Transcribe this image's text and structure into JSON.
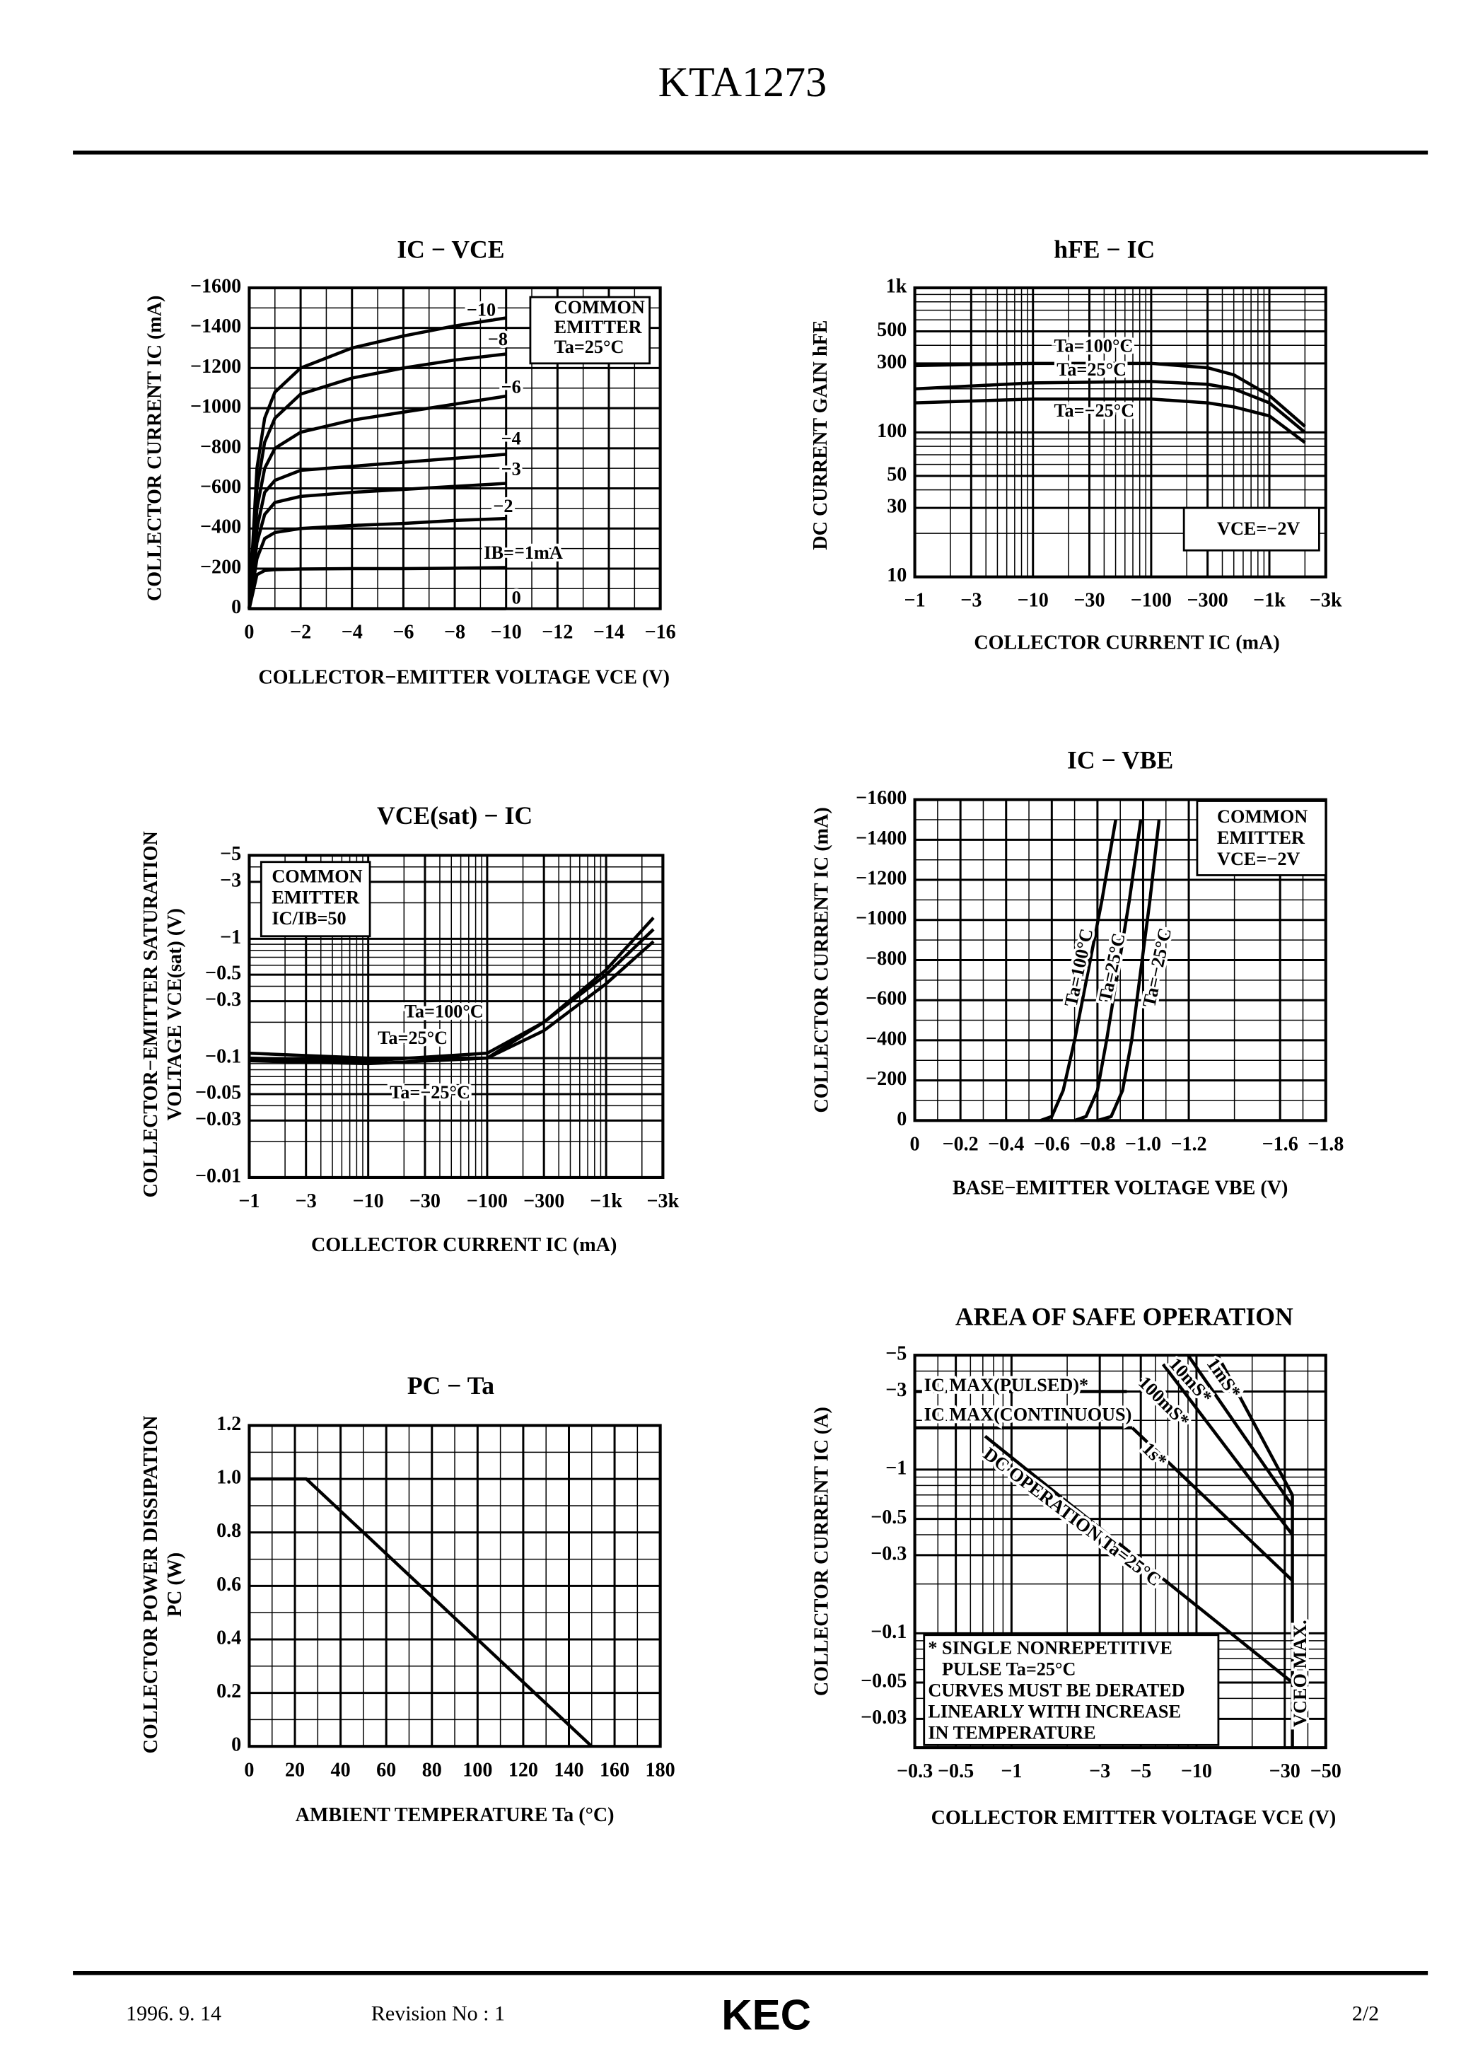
{
  "header": {
    "title": "KTA1273"
  },
  "chart_data": [
    {
      "type": "line",
      "title": "IC − VCE",
      "x_label": "COLLECTOR−EMITTER VOLTAGE VCE   (V)",
      "y_label": [
        "COLLECTOR CURRENT IC   (mA)"
      ],
      "annotation": [
        "COMMON",
        "EMITTER",
        "Ta=25°C"
      ],
      "color": "#000000",
      "grid": true,
      "x": [
        0,
        -0.3,
        -0.6,
        -1,
        -2,
        -4,
        -6,
        -8,
        -10
      ],
      "series": [
        {
          "name": "−10",
          "values": [
            0,
            -700,
            -950,
            -1080,
            -1200,
            -1300,
            -1360,
            -1410,
            -1450
          ]
        },
        {
          "name": "−8",
          "values": [
            0,
            -600,
            -830,
            -950,
            -1070,
            -1150,
            -1200,
            -1240,
            -1270
          ]
        },
        {
          "name": "−6",
          "values": [
            0,
            -500,
            -700,
            -800,
            -880,
            -940,
            -980,
            -1020,
            -1060
          ]
        },
        {
          "name": "−4",
          "values": [
            0,
            -400,
            -580,
            -640,
            -690,
            -710,
            -730,
            -750,
            -770
          ]
        },
        {
          "name": "−3",
          "values": [
            0,
            -330,
            -470,
            -530,
            -560,
            -580,
            -595,
            -610,
            -625
          ]
        },
        {
          "name": "−2",
          "values": [
            0,
            -250,
            -350,
            -380,
            -400,
            -415,
            -425,
            -440,
            -450
          ]
        },
        {
          "name": "IB=−1mA",
          "values": [
            0,
            -170,
            -190,
            -195,
            -198,
            -200,
            -200,
            -202,
            -205
          ]
        },
        {
          "name": "0",
          "values": [
            0,
            0,
            0,
            0,
            0,
            0,
            0,
            0,
            0
          ]
        }
      ],
      "xlim": [
        0,
        -16
      ],
      "ylim": [
        0,
        -1600
      ],
      "xticks": [
        0,
        {
          "value": -2,
          "label": "−2"
        },
        {
          "value": -4,
          "label": "−4"
        },
        {
          "value": -6,
          "label": "−6"
        },
        {
          "value": -8,
          "label": "−8"
        },
        {
          "value": -10,
          "label": "−10"
        },
        {
          "value": -12,
          "label": "−12"
        },
        {
          "value": -14,
          "label": "−14"
        },
        {
          "value": -16,
          "label": "−16"
        }
      ],
      "yticks": [
        0,
        {
          "value": -200,
          "label": "−200"
        },
        {
          "value": -400,
          "label": "−400"
        },
        {
          "value": -600,
          "label": "−600"
        },
        {
          "value": -800,
          "label": "−800"
        },
        {
          "value": -1000,
          "label": "−1000"
        },
        {
          "value": -1200,
          "label": "−1200"
        },
        {
          "value": -1400,
          "label": "−1400"
        },
        {
          "value": -1600,
          "label": "−1600"
        }
      ]
    },
    {
      "type": "line",
      "title": "hFE − IC",
      "x_label": "COLLECTOR CURRENT IC   (mA)",
      "y_label": [
        "DC CURRENT GAIN hFE"
      ],
      "annotation": [
        "VCE=−2V"
      ],
      "color": "#000000",
      "grid": true,
      "xlog": true,
      "ylog": true,
      "x": [
        -1,
        -10,
        -100,
        -300,
        -500,
        -1000,
        -2000
      ],
      "series": [
        {
          "name": "Ta=100°C",
          "values": [
            290,
            300,
            300,
            280,
            250,
            180,
            110
          ]
        },
        {
          "name": "Ta=25°C",
          "values": [
            200,
            220,
            225,
            215,
            200,
            160,
            100
          ]
        },
        {
          "name": "Ta=−25°C",
          "values": [
            160,
            170,
            170,
            160,
            150,
            130,
            85
          ]
        }
      ],
      "xlim": [
        -1,
        -3000
      ],
      "ylim": [
        10,
        1000
      ],
      "xticks": [
        {
          "value": -1,
          "label": "−1"
        },
        {
          "value": -3,
          "label": "−3"
        },
        {
          "value": -10,
          "label": "−10"
        },
        {
          "value": -30,
          "label": "−30"
        },
        {
          "value": -100,
          "label": "−100"
        },
        {
          "value": -300,
          "label": "−300"
        },
        {
          "value": -1000,
          "label": "−1k"
        },
        {
          "value": -3000,
          "label": "−3k"
        }
      ],
      "yticks": [
        10,
        30,
        50,
        100,
        300,
        500,
        {
          "value": 1000,
          "label": "1k"
        }
      ]
    },
    {
      "type": "line",
      "title": "VCE(sat) − IC",
      "x_label": "COLLECTOR CURRENT IC   (mA)",
      "y_label": [
        "COLLECTOR−EMITTER SATURATION",
        "VOLTAGE VCE(sat)   (V)"
      ],
      "annotation": [
        "COMMON",
        "EMITTER",
        "IC/IB=50"
      ],
      "color": "#000000",
      "grid": true,
      "xlog": true,
      "ylog": true,
      "x": [
        -1,
        -10,
        -100,
        -300,
        -1000,
        -2500
      ],
      "series": [
        {
          "name": "Ta=100°C",
          "values": [
            -0.095,
            -0.09,
            -0.1,
            -0.2,
            -0.55,
            -1.5
          ]
        },
        {
          "name": "Ta=25°C",
          "values": [
            -0.1,
            -0.095,
            -0.11,
            -0.2,
            -0.5,
            -1.2
          ]
        },
        {
          "name": "Ta=−25°C",
          "values": [
            -0.11,
            -0.1,
            -0.1,
            -0.17,
            -0.42,
            -0.95
          ]
        }
      ],
      "xlim": [
        -1,
        -3000
      ],
      "ylim": [
        -0.01,
        -5
      ],
      "xticks": [
        {
          "value": -1,
          "label": "−1"
        },
        {
          "value": -3,
          "label": "−3"
        },
        {
          "value": -10,
          "label": "−10"
        },
        {
          "value": -30,
          "label": "−30"
        },
        {
          "value": -100,
          "label": "−100"
        },
        {
          "value": -300,
          "label": "−300"
        },
        {
          "value": -1000,
          "label": "−1k"
        },
        {
          "value": -3000,
          "label": "−3k"
        }
      ],
      "yticks": [
        {
          "value": -5,
          "label": "−5"
        },
        {
          "value": -3,
          "label": "−3"
        },
        {
          "value": -1,
          "label": "−1"
        },
        {
          "value": -0.5,
          "label": "−0.5"
        },
        {
          "value": -0.3,
          "label": "−0.3"
        },
        {
          "value": -0.1,
          "label": "−0.1"
        },
        {
          "value": -0.05,
          "label": "−0.05"
        },
        {
          "value": -0.03,
          "label": "−0.03"
        },
        {
          "value": -0.01,
          "label": "−0.01"
        }
      ]
    },
    {
      "type": "line",
      "title": "IC − VBE",
      "x_label": "BASE−EMITTER VOLTAGE VBE   (V)",
      "y_label": [
        "COLLECTOR CURRENT IC   (mA)"
      ],
      "annotation": [
        "COMMON",
        "EMITTER",
        "VCE=−2V"
      ],
      "color": "#000000",
      "grid": true,
      "series": [
        {
          "name": "Ta=100°C",
          "x": [
            -0.55,
            -0.6,
            -0.65,
            -0.7,
            -0.76,
            -0.82,
            -0.88
          ],
          "values": [
            0,
            -20,
            -150,
            -400,
            -750,
            -1100,
            -1500
          ]
        },
        {
          "name": "Ta=25°C",
          "x": [
            -0.7,
            -0.75,
            -0.8,
            -0.84,
            -0.89,
            -0.94,
            -0.99
          ],
          "values": [
            0,
            -20,
            -150,
            -400,
            -750,
            -1100,
            -1500
          ]
        },
        {
          "name": "Ta=−25°C",
          "x": [
            -0.8,
            -0.86,
            -0.91,
            -0.95,
            -0.99,
            -1.03,
            -1.07
          ],
          "values": [
            0,
            -20,
            -150,
            -400,
            -750,
            -1100,
            -1500
          ]
        }
      ],
      "xlim": [
        0,
        -1.8
      ],
      "ylim": [
        0,
        -1600
      ],
      "xticks": [
        0,
        {
          "value": -0.2,
          "label": "−0.2"
        },
        {
          "value": -0.4,
          "label": "−0.4"
        },
        {
          "value": -0.6,
          "label": "−0.6"
        },
        {
          "value": -0.8,
          "label": "−0.8"
        },
        {
          "value": -1,
          "label": "−1.0"
        },
        {
          "value": -1.2,
          "label": "−1.2"
        },
        {
          "value": -1.6,
          "label": "−1.6"
        },
        {
          "value": -1.8,
          "label": "−1.8"
        }
      ],
      "yticks": [
        0,
        {
          "value": -200,
          "label": "−200"
        },
        {
          "value": -400,
          "label": "−400"
        },
        {
          "value": -600,
          "label": "−600"
        },
        {
          "value": -800,
          "label": "−800"
        },
        {
          "value": -1000,
          "label": "−1000"
        },
        {
          "value": -1200,
          "label": "−1200"
        },
        {
          "value": -1400,
          "label": "−1400"
        },
        {
          "value": -1600,
          "label": "−1600"
        }
      ]
    },
    {
      "type": "line",
      "title": "PC − Ta",
      "x_label": "AMBIENT TEMPERATURE Ta   (°C)",
      "y_label": [
        "COLLECTOR POWER DISSIPATION",
        "PC (W)"
      ],
      "color": "#000000",
      "grid": true,
      "x": [
        0,
        25,
        150
      ],
      "series": [
        {
          "values": [
            1,
            1,
            0
          ]
        }
      ],
      "xlim": [
        0,
        180
      ],
      "ylim": [
        0,
        1.2
      ],
      "xticks": [
        0,
        20,
        40,
        60,
        80,
        100,
        120,
        140,
        160,
        180
      ],
      "yticks": [
        0,
        0.2,
        0.4,
        0.6,
        0.8,
        {
          "value": 1,
          "label": "1.0"
        },
        1.2
      ]
    },
    {
      "type": "line",
      "title": "AREA OF SAFE OPERATION",
      "x_label": "COLLECTOR EMITTER VOLTAGE VCE   (V)",
      "y_label": [
        "COLLECTOR CURRENT IC   (A)"
      ],
      "annotation": [
        "* SINGLE NONREPETITIVE",
        "   PULSE Ta=25°C",
        "CURVES MUST BE DERATED",
        "LINEARLY WITH INCREASE",
        "IN TEMPERATURE"
      ],
      "color": "#000000",
      "grid": true,
      "xlog": true,
      "ylog": true,
      "series": [
        {
          "name": "IC MAX(PULSED)*",
          "x": [
            -0.3,
            -4.2
          ],
          "values": [
            -3,
            -3
          ]
        },
        {
          "name": "IC MAX(CONTINUOUS)",
          "x": [
            -0.3,
            -4.5
          ],
          "values": [
            -1.8,
            -1.8
          ]
        },
        {
          "name": "1mS*",
          "x": [
            -13,
            -33
          ],
          "values": [
            -5,
            -0.7
          ]
        },
        {
          "name": "10mS*",
          "x": [
            -9,
            -33
          ],
          "values": [
            -5,
            -0.6
          ]
        },
        {
          "name": "100mS*",
          "x": [
            -6.6,
            -33
          ],
          "values": [
            -4.4,
            -0.4
          ]
        },
        {
          "name": "1s*",
          "x": [
            -4.5,
            -33
          ],
          "values": [
            -1.8,
            -0.21
          ]
        },
        {
          "name": "DC OPERATION Ta=25°C",
          "x": [
            -0.72,
            -33
          ],
          "values": [
            -1.6,
            -0.05
          ]
        },
        {
          "name": "VCEO MAX.",
          "x": [
            -33,
            -33
          ],
          "values": [
            -0.7,
            -0.02
          ]
        }
      ],
      "xlim": [
        -0.3,
        -50
      ],
      "ylim": [
        -0.02,
        -5
      ],
      "xticks": [
        {
          "value": -0.3,
          "label": "−0.3"
        },
        {
          "value": -0.5,
          "label": "−0.5"
        },
        {
          "value": -1,
          "label": "−1"
        },
        {
          "value": -3,
          "label": "−3"
        },
        {
          "value": -5,
          "label": "−5"
        },
        {
          "value": -10,
          "label": "−10"
        },
        {
          "value": -30,
          "label": "−30"
        },
        {
          "value": -50,
          "label": "−50"
        }
      ],
      "yticks": [
        {
          "value": -5,
          "label": "−5"
        },
        {
          "value": -3,
          "label": "−3"
        },
        {
          "value": -1,
          "label": "−1"
        },
        {
          "value": -0.5,
          "label": "−0.5"
        },
        {
          "value": -0.3,
          "label": "−0.3"
        },
        {
          "value": -0.1,
          "label": "−0.1"
        },
        {
          "value": -0.05,
          "label": "−0.05"
        },
        {
          "value": -0.03,
          "label": "−0.03"
        }
      ]
    }
  ],
  "footer": {
    "date": "1996.  9. 14",
    "revision": "Revision No : 1",
    "logo": "KEC",
    "page": "2/2"
  }
}
